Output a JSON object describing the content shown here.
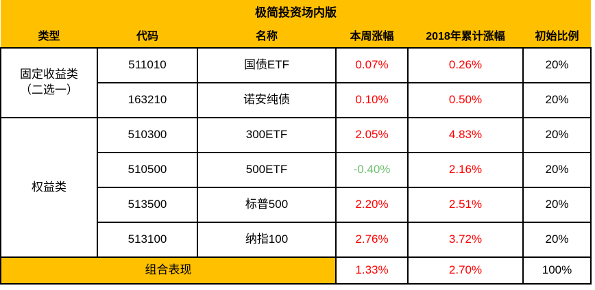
{
  "table": {
    "title": "极简投资场内版",
    "columns": [
      "类型",
      "代码",
      "名称",
      "本周涨幅",
      "2018年累计涨幅",
      "初始比例"
    ],
    "groups": [
      {
        "label": "固定收益类\n（二选一）",
        "rowspan": 2
      },
      {
        "label": "权益类",
        "rowspan": 4
      }
    ],
    "rows": [
      {
        "code": "511010",
        "name": "国债ETF",
        "week": "0.07%",
        "ytd": "0.26%",
        "ratio": "20%"
      },
      {
        "code": "163210",
        "name": "诺安纯债",
        "week": "0.10%",
        "ytd": "0.50%",
        "ratio": "20%"
      },
      {
        "code": "510300",
        "name": "300ETF",
        "week": "2.05%",
        "ytd": "4.83%",
        "ratio": "20%"
      },
      {
        "code": "510500",
        "name": "500ETF",
        "week": "-0.40%",
        "ytd": "2.16%",
        "ratio": "20%"
      },
      {
        "code": "513500",
        "name": "标普500",
        "week": "2.20%",
        "ytd": "2.51%",
        "ratio": "20%"
      },
      {
        "code": "513100",
        "name": "纳指100",
        "week": "2.76%",
        "ytd": "3.72%",
        "ratio": "20%"
      }
    ],
    "footer": {
      "label": "组合表现",
      "week": "1.33%",
      "ytd": "2.70%",
      "ratio": "100%"
    }
  },
  "colors": {
    "gold": "#FFC000",
    "gain_red": "#FF0000",
    "loss_green": "#6FBE6F",
    "border_black": "#000000",
    "text_black": "#000000"
  },
  "chart_data": {
    "type": "table",
    "title": "极简投资场内版",
    "columns": [
      "类型",
      "代码",
      "名称",
      "本周涨幅",
      "2018年累计涨幅",
      "初始比例"
    ],
    "rows": [
      [
        "固定收益类（二选一）",
        "511010",
        "国债ETF",
        "0.07%",
        "0.26%",
        "20%"
      ],
      [
        "固定收益类（二选一）",
        "163210",
        "诺安纯债",
        "0.10%",
        "0.50%",
        "20%"
      ],
      [
        "权益类",
        "510300",
        "300ETF",
        "2.05%",
        "4.83%",
        "20%"
      ],
      [
        "权益类",
        "510500",
        "500ETF",
        "-0.40%",
        "2.16%",
        "20%"
      ],
      [
        "权益类",
        "513500",
        "标普500",
        "2.20%",
        "2.51%",
        "20%"
      ],
      [
        "权益类",
        "513100",
        "纳指100",
        "2.76%",
        "3.72%",
        "20%"
      ]
    ],
    "footer_row": [
      "组合表现",
      "1.33%",
      "2.70%",
      "100%"
    ],
    "week_change_values_pct": [
      0.07,
      0.1,
      2.05,
      -0.4,
      2.2,
      2.76
    ],
    "ytd_2018_values_pct": [
      0.26,
      0.5,
      4.83,
      2.16,
      2.51,
      3.72
    ],
    "initial_ratio_values_pct": [
      20,
      20,
      20,
      20,
      20,
      20
    ],
    "portfolio_week_pct": 1.33,
    "portfolio_ytd_pct": 2.7,
    "portfolio_ratio_pct": 100,
    "value_color_rule": "positive changes red, negative changes green"
  }
}
